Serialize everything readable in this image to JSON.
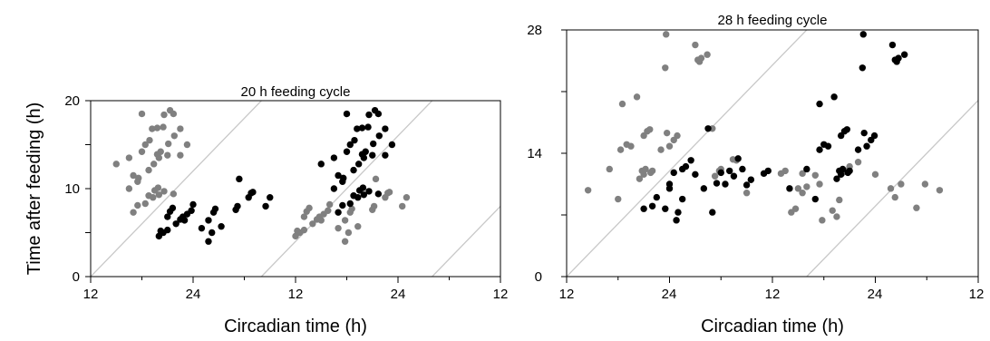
{
  "chart_data": [
    {
      "type": "scatter",
      "title": "20 h feeding cycle",
      "xlabel": "Circadian time (h)",
      "ylabel": "Time after feeding (h)",
      "x_range_hours": [
        12,
        60
      ],
      "x_tick_values": [
        12,
        24,
        36,
        48,
        60
      ],
      "x_tick_labels": [
        "12",
        "24",
        "12",
        "24",
        "12"
      ],
      "ylim": [
        0,
        20
      ],
      "y_ticks": [
        0,
        10,
        20
      ],
      "feeding_period": 20,
      "diagonal_offsets": [
        -40,
        -20,
        0,
        20,
        40
      ],
      "series": [
        {
          "color": "#808080",
          "points": [
            [
              15.0,
              12.8
            ],
            [
              16.5,
              13.5
            ],
            [
              16.5,
              10.0
            ],
            [
              17.0,
              7.3
            ],
            [
              17.0,
              11.5
            ],
            [
              17.5,
              8.1
            ],
            [
              17.5,
              10.8
            ],
            [
              17.6,
              11.2
            ],
            [
              18.0,
              14.2
            ],
            [
              18.0,
              18.5
            ],
            [
              18.4,
              15.0
            ],
            [
              18.4,
              8.3
            ],
            [
              18.8,
              12.1
            ],
            [
              18.8,
              9.2
            ],
            [
              18.9,
              15.5
            ],
            [
              19.2,
              16.8
            ],
            [
              19.3,
              9.0
            ],
            [
              19.4,
              12.8
            ],
            [
              19.5,
              9.8
            ],
            [
              19.8,
              13.9
            ],
            [
              19.8,
              16.9
            ],
            [
              19.9,
              10.1
            ],
            [
              20.0,
              9.3
            ],
            [
              20.0,
              13.5
            ],
            [
              20.2,
              14.2
            ],
            [
              20.5,
              17.0
            ],
            [
              20.6,
              18.4
            ],
            [
              20.6,
              9.7
            ],
            [
              21.0,
              13.8
            ],
            [
              21.1,
              15.1
            ],
            [
              21.3,
              18.9
            ],
            [
              21.7,
              9.4
            ],
            [
              21.7,
              18.5
            ],
            [
              21.8,
              16.0
            ],
            [
              22.5,
              13.8
            ],
            [
              22.5,
              16.8
            ],
            [
              23.3,
              15.0
            ],
            [
              36.0,
              4.6
            ],
            [
              36.2,
              5.2
            ],
            [
              36.5,
              5.0
            ],
            [
              37.0,
              5.3
            ],
            [
              37.0,
              6.8
            ],
            [
              37.3,
              7.4
            ],
            [
              37.6,
              7.8
            ],
            [
              38.0,
              6.0
            ],
            [
              38.5,
              6.5
            ],
            [
              38.8,
              6.8
            ],
            [
              39.0,
              6.4
            ],
            [
              39.3,
              7.1
            ],
            [
              39.8,
              7.5
            ],
            [
              40.0,
              8.2
            ],
            [
              41.0,
              5.5
            ],
            [
              41.8,
              4.0
            ],
            [
              41.8,
              6.4
            ],
            [
              42.2,
              5.0
            ],
            [
              42.4,
              7.3
            ],
            [
              42.6,
              7.7
            ],
            [
              43.3,
              5.7
            ],
            [
              45.0,
              7.6
            ],
            [
              45.2,
              8.0
            ],
            [
              45.4,
              11.1
            ],
            [
              46.5,
              9.0
            ],
            [
              46.8,
              9.5
            ],
            [
              47.0,
              9.6
            ],
            [
              48.5,
              8.0
            ],
            [
              49.0,
              9.0
            ]
          ]
        },
        {
          "color": "#000000",
          "points": [
            [
              20.0,
              4.6
            ],
            [
              20.2,
              5.2
            ],
            [
              20.5,
              5.0
            ],
            [
              21.0,
              5.3
            ],
            [
              21.0,
              6.8
            ],
            [
              21.3,
              7.4
            ],
            [
              21.6,
              7.8
            ],
            [
              22.0,
              6.0
            ],
            [
              22.5,
              6.5
            ],
            [
              22.8,
              6.8
            ],
            [
              23.0,
              6.4
            ],
            [
              23.3,
              7.1
            ],
            [
              23.8,
              7.5
            ],
            [
              24.0,
              8.2
            ],
            [
              25.0,
              5.5
            ],
            [
              25.8,
              4.0
            ],
            [
              25.8,
              6.4
            ],
            [
              26.2,
              5.0
            ],
            [
              26.4,
              7.3
            ],
            [
              26.6,
              7.7
            ],
            [
              27.3,
              5.7
            ],
            [
              29.0,
              7.6
            ],
            [
              29.2,
              8.0
            ],
            [
              29.4,
              11.1
            ],
            [
              30.5,
              9.0
            ],
            [
              30.8,
              9.5
            ],
            [
              31.0,
              9.6
            ],
            [
              32.5,
              8.0
            ],
            [
              33.0,
              9.0
            ],
            [
              39.0,
              12.8
            ],
            [
              40.5,
              13.5
            ],
            [
              40.5,
              10.0
            ],
            [
              41.0,
              7.3
            ],
            [
              41.0,
              11.5
            ],
            [
              41.5,
              8.1
            ],
            [
              41.5,
              10.8
            ],
            [
              41.6,
              11.2
            ],
            [
              42.0,
              14.2
            ],
            [
              42.0,
              18.5
            ],
            [
              42.4,
              15.0
            ],
            [
              42.4,
              8.3
            ],
            [
              42.8,
              12.1
            ],
            [
              42.8,
              9.2
            ],
            [
              42.9,
              15.5
            ],
            [
              43.2,
              16.8
            ],
            [
              43.3,
              9.0
            ],
            [
              43.4,
              12.8
            ],
            [
              43.5,
              9.8
            ],
            [
              43.8,
              13.9
            ],
            [
              43.8,
              16.9
            ],
            [
              43.9,
              10.1
            ],
            [
              44.0,
              9.3
            ],
            [
              44.0,
              13.5
            ],
            [
              44.2,
              14.2
            ],
            [
              44.5,
              17.0
            ],
            [
              44.6,
              18.4
            ],
            [
              44.6,
              9.7
            ],
            [
              45.0,
              13.8
            ],
            [
              45.1,
              15.1
            ],
            [
              45.3,
              18.9
            ],
            [
              45.7,
              9.4
            ],
            [
              45.7,
              18.5
            ],
            [
              45.8,
              16.0
            ],
            [
              46.5,
              13.8
            ],
            [
              46.5,
              16.8
            ],
            [
              47.3,
              15.0
            ]
          ]
        }
      ],
      "marker_color_gray": "#808080",
      "marker_color_black": "#000000",
      "diagonal_color": "#c8c8c8"
    },
    {
      "type": "scatter",
      "title": "28 h feeding cycle",
      "xlabel": "Circadian time (h)",
      "ylabel": "",
      "x_range_hours": [
        12,
        60
      ],
      "x_tick_values": [
        12,
        24,
        36,
        48,
        60
      ],
      "x_tick_labels": [
        "12",
        "24",
        "12",
        "24",
        "12"
      ],
      "ylim": [
        0,
        28
      ],
      "y_ticks": [
        0,
        14,
        28
      ],
      "feeding_period": 28,
      "diagonal_offsets": [
        -56,
        -28,
        0,
        28
      ],
      "series": [
        {
          "color": "#808080",
          "points": [
            [
              14.5,
              9.8
            ],
            [
              17.0,
              12.2
            ],
            [
              18.0,
              8.8
            ],
            [
              18.3,
              14.4
            ],
            [
              18.5,
              19.6
            ],
            [
              19.0,
              15.0
            ],
            [
              19.5,
              14.8
            ],
            [
              20.2,
              20.4
            ],
            [
              20.5,
              11.1
            ],
            [
              20.8,
              12.0
            ],
            [
              21.0,
              11.6
            ],
            [
              21.0,
              16.0
            ],
            [
              21.2,
              12.2
            ],
            [
              21.4,
              16.5
            ],
            [
              21.7,
              16.7
            ],
            [
              21.8,
              11.8
            ],
            [
              22.0,
              12.0
            ],
            [
              23.0,
              14.4
            ],
            [
              23.5,
              23.7
            ],
            [
              23.6,
              27.5
            ],
            [
              23.7,
              16.3
            ],
            [
              24.0,
              14.8
            ],
            [
              24.5,
              15.5
            ],
            [
              24.9,
              16.0
            ],
            [
              27.0,
              26.3
            ],
            [
              27.3,
              24.6
            ],
            [
              27.5,
              24.4
            ],
            [
              27.7,
              24.8
            ],
            [
              28.4,
              25.2
            ],
            [
              29.0,
              16.8
            ],
            [
              29.3,
              11.4
            ],
            [
              29.8,
              12.0
            ],
            [
              30.0,
              12.2
            ],
            [
              31.4,
              13.3
            ],
            [
              31.8,
              13.2
            ],
            [
              33.0,
              9.5
            ],
            [
              33.5,
              11.0
            ],
            [
              37.0,
              11.7
            ],
            [
              37.5,
              12.0
            ],
            [
              38.2,
              7.3
            ],
            [
              38.7,
              7.7
            ],
            [
              39.0,
              10.0
            ],
            [
              39.5,
              9.5
            ],
            [
              39.5,
              11.7
            ],
            [
              40.0,
              10.2
            ],
            [
              41.0,
              11.5
            ],
            [
              41.5,
              10.5
            ],
            [
              41.8,
              6.4
            ],
            [
              43.0,
              7.5
            ],
            [
              43.5,
              6.8
            ],
            [
              43.8,
              8.7
            ],
            [
              44.2,
              11.8
            ],
            [
              44.5,
              12.0
            ],
            [
              45.0,
              12.5
            ],
            [
              46.0,
              13.0
            ],
            [
              48.0,
              11.6
            ],
            [
              49.8,
              10.0
            ],
            [
              50.3,
              9.0
            ],
            [
              51.0,
              10.5
            ],
            [
              52.8,
              7.8
            ],
            [
              53.8,
              10.5
            ],
            [
              55.5,
              9.8
            ]
          ]
        },
        {
          "color": "#000000",
          "points": [
            [
              21.0,
              7.7
            ],
            [
              22.0,
              8.0
            ],
            [
              22.5,
              9.0
            ],
            [
              23.5,
              7.7
            ],
            [
              24.0,
              10.0
            ],
            [
              24.0,
              10.5
            ],
            [
              24.5,
              11.8
            ],
            [
              24.8,
              6.4
            ],
            [
              25.0,
              7.3
            ],
            [
              25.5,
              8.8
            ],
            [
              25.5,
              12.2
            ],
            [
              25.9,
              12.5
            ],
            [
              26.5,
              13.2
            ],
            [
              27.0,
              11.6
            ],
            [
              28.0,
              10.0
            ],
            [
              28.5,
              16.8
            ],
            [
              29.0,
              7.3
            ],
            [
              29.5,
              10.6
            ],
            [
              30.0,
              11.8
            ],
            [
              30.5,
              10.5
            ],
            [
              31.0,
              12.0
            ],
            [
              31.5,
              11.4
            ],
            [
              32.0,
              13.4
            ],
            [
              32.5,
              12.2
            ],
            [
              33.0,
              10.4
            ],
            [
              33.5,
              11.0
            ],
            [
              35.0,
              11.7
            ],
            [
              35.5,
              12.0
            ],
            [
              38.0,
              10.0
            ],
            [
              40.0,
              12.2
            ],
            [
              41.0,
              8.8
            ],
            [
              41.5,
              14.4
            ],
            [
              41.5,
              19.6
            ],
            [
              42.0,
              15.0
            ],
            [
              42.5,
              14.8
            ],
            [
              43.2,
              20.4
            ],
            [
              43.5,
              11.1
            ],
            [
              43.8,
              12.0
            ],
            [
              44.0,
              11.6
            ],
            [
              44.0,
              16.0
            ],
            [
              44.2,
              12.2
            ],
            [
              44.4,
              16.5
            ],
            [
              44.7,
              16.7
            ],
            [
              44.8,
              11.8
            ],
            [
              45.0,
              12.0
            ],
            [
              46.0,
              14.4
            ],
            [
              46.5,
              23.7
            ],
            [
              46.6,
              27.5
            ],
            [
              46.7,
              16.3
            ],
            [
              47.0,
              14.8
            ],
            [
              47.5,
              15.5
            ],
            [
              47.9,
              16.0
            ],
            [
              50.0,
              26.3
            ],
            [
              50.3,
              24.6
            ],
            [
              50.5,
              24.4
            ],
            [
              50.7,
              24.8
            ],
            [
              51.4,
              25.2
            ]
          ]
        }
      ],
      "marker_color_gray": "#808080",
      "marker_color_black": "#000000",
      "diagonal_color": "#c8c8c8"
    }
  ]
}
